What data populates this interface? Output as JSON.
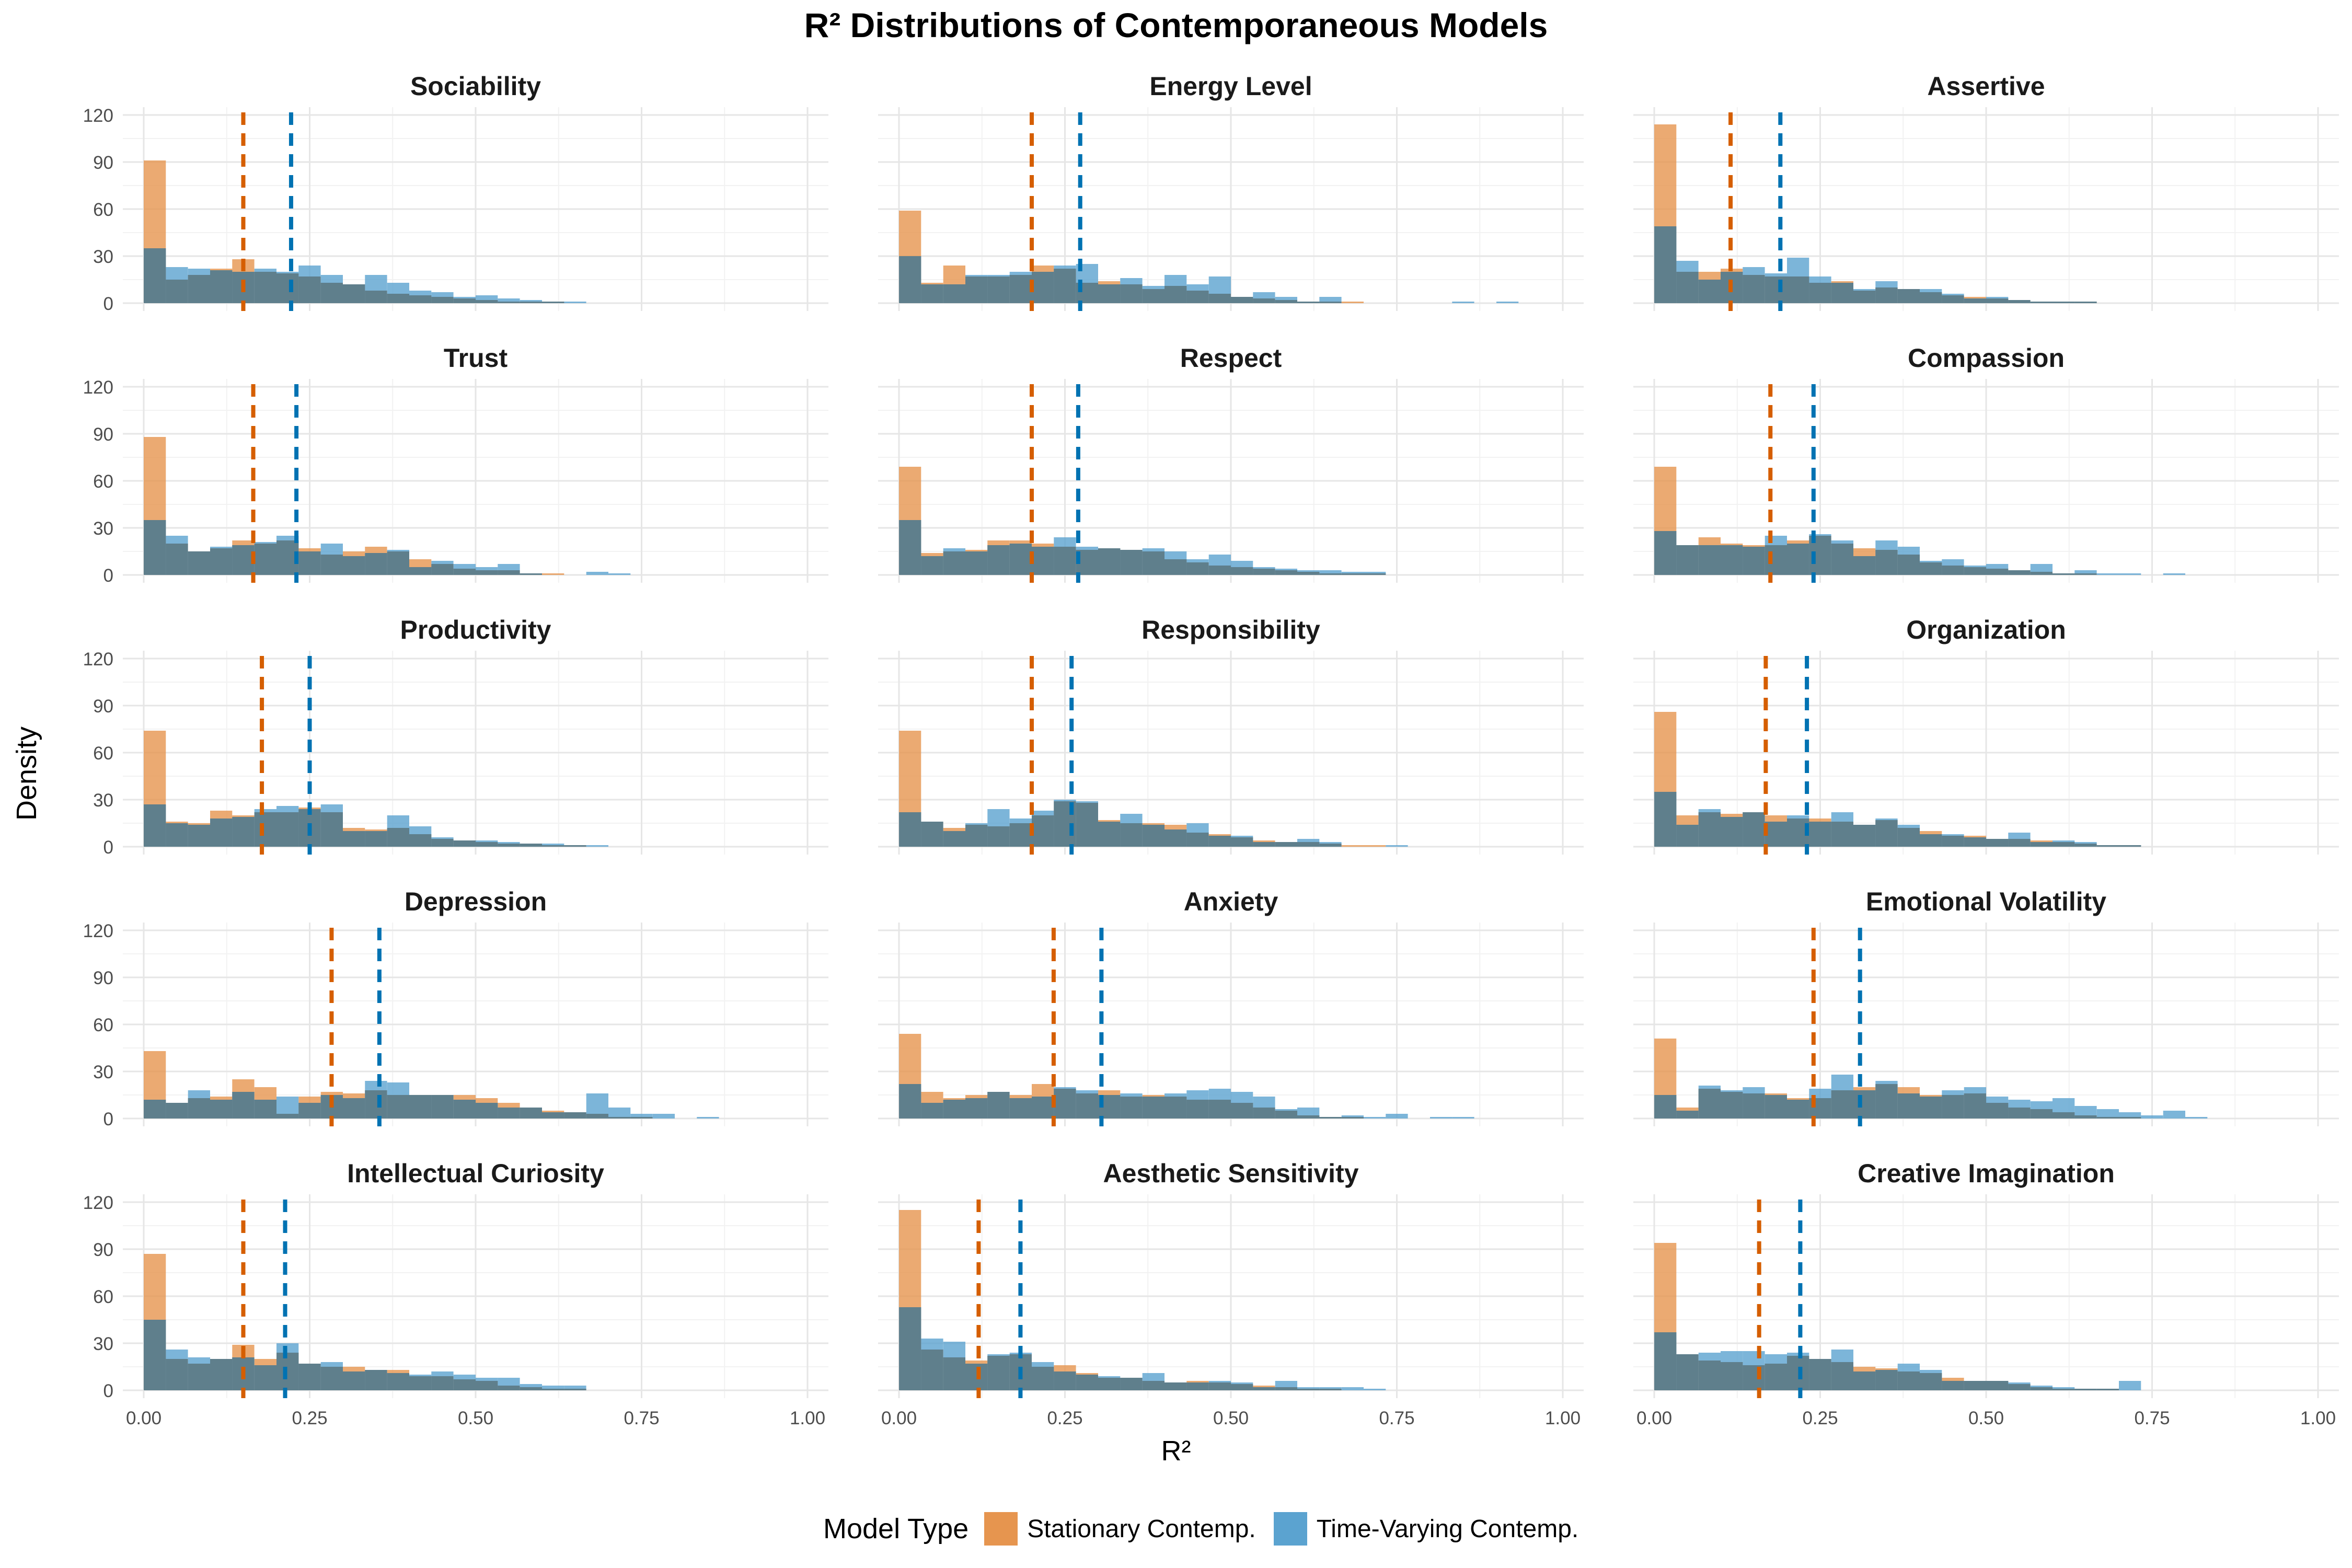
{
  "title": "R² Distributions of Contemporaneous Models",
  "xlabel": "R²",
  "ylabel": "Density",
  "legend": {
    "title": "Model Type",
    "items": [
      {
        "label": "Stationary Contemp.",
        "color": "#E6954F"
      },
      {
        "label": "Time-Varying Contemp.",
        "color": "#5BA3D0"
      }
    ]
  },
  "colors": {
    "stationary_mean": "#D55E00",
    "timevarying_mean": "#0072B2",
    "overlap": "#5F7F8C"
  },
  "chart_data": {
    "type": "histogram",
    "layout": "facet-grid 5 rows x 3 columns",
    "xlim": [
      0,
      1
    ],
    "ylim": [
      0,
      120
    ],
    "x_ticks": [
      "0.00",
      "0.25",
      "0.50",
      "0.75",
      "1.00"
    ],
    "y_ticks": [
      "0",
      "30",
      "60",
      "90",
      "120"
    ],
    "bin_width": 0.0333,
    "bin_starts": [
      0.0,
      0.0333,
      0.0667,
      0.1,
      0.1333,
      0.1667,
      0.2,
      0.2333,
      0.2667,
      0.3,
      0.3333,
      0.3667,
      0.4,
      0.4333,
      0.4667,
      0.5,
      0.5333,
      0.5667,
      0.6,
      0.6333,
      0.6667,
      0.7,
      0.7333,
      0.7667,
      0.8,
      0.8333,
      0.8667,
      0.9,
      0.9333,
      0.9667
    ],
    "series_names": [
      "Stationary Contemp.",
      "Time-Varying Contemp."
    ],
    "panels": [
      {
        "name": "Sociability",
        "mean_stationary": 0.15,
        "mean_timevarying": 0.222,
        "stationary": [
          91,
          15,
          18,
          22,
          28,
          20,
          19,
          17,
          13,
          12,
          8,
          6,
          5,
          4,
          3,
          2,
          1,
          1,
          1,
          0,
          0,
          0,
          0,
          0,
          0,
          0,
          0,
          0,
          0,
          0
        ],
        "timevarying": [
          35,
          23,
          22,
          21,
          20,
          22,
          20,
          24,
          18,
          12,
          18,
          13,
          8,
          7,
          4,
          5,
          3,
          2,
          1,
          1,
          0,
          0,
          0,
          0,
          0,
          0,
          0,
          0,
          0,
          0
        ]
      },
      {
        "name": "Energy Level",
        "mean_stationary": 0.2,
        "mean_timevarying": 0.273,
        "stationary": [
          59,
          13,
          24,
          17,
          17,
          18,
          24,
          22,
          13,
          14,
          12,
          9,
          11,
          8,
          6,
          4,
          3,
          2,
          1,
          1,
          1,
          0,
          0,
          0,
          0,
          0,
          0,
          0,
          0,
          0
        ],
        "timevarying": [
          30,
          12,
          12,
          18,
          18,
          20,
          20,
          24,
          25,
          12,
          16,
          11,
          18,
          12,
          17,
          4,
          7,
          4,
          1,
          4,
          0,
          0,
          0,
          0,
          0,
          1,
          0,
          1,
          0,
          0
        ]
      },
      {
        "name": "Assertive",
        "mean_stationary": 0.115,
        "mean_timevarying": 0.19,
        "stationary": [
          114,
          20,
          20,
          22,
          18,
          17,
          17,
          13,
          14,
          8,
          10,
          9,
          7,
          5,
          4,
          3,
          2,
          1,
          1,
          1,
          0,
          0,
          0,
          0,
          0,
          0,
          0,
          0,
          0,
          0
        ],
        "timevarying": [
          49,
          27,
          15,
          20,
          23,
          19,
          29,
          17,
          13,
          9,
          14,
          9,
          9,
          6,
          3,
          4,
          2,
          1,
          1,
          1,
          0,
          0,
          0,
          0,
          0,
          0,
          0,
          0,
          0,
          0
        ]
      },
      {
        "name": "Trust",
        "mean_stationary": 0.165,
        "mean_timevarying": 0.23,
        "stationary": [
          88,
          20,
          15,
          17,
          22,
          20,
          22,
          17,
          13,
          15,
          18,
          15,
          10,
          7,
          4,
          3,
          3,
          1,
          1,
          0,
          0,
          0,
          0,
          0,
          0,
          0,
          0,
          0,
          0,
          0
        ],
        "timevarying": [
          35,
          25,
          15,
          18,
          19,
          21,
          25,
          15,
          20,
          12,
          14,
          16,
          5,
          9,
          7,
          5,
          7,
          1,
          0,
          0,
          2,
          1,
          0,
          0,
          0,
          0,
          0,
          0,
          0,
          0
        ]
      },
      {
        "name": "Respect",
        "mean_stationary": 0.2,
        "mean_timevarying": 0.27,
        "stationary": [
          69,
          14,
          15,
          16,
          22,
          22,
          20,
          18,
          16,
          17,
          16,
          15,
          10,
          8,
          6,
          5,
          4,
          3,
          2,
          1,
          1,
          1,
          0,
          0,
          0,
          0,
          0,
          0,
          0,
          0
        ],
        "timevarying": [
          35,
          12,
          17,
          15,
          19,
          20,
          18,
          24,
          18,
          17,
          16,
          17,
          15,
          10,
          13,
          9,
          5,
          4,
          3,
          3,
          2,
          2,
          0,
          0,
          0,
          0,
          0,
          0,
          0,
          0
        ]
      },
      {
        "name": "Compassion",
        "mean_stationary": 0.175,
        "mean_timevarying": 0.24,
        "stationary": [
          69,
          19,
          24,
          20,
          19,
          19,
          22,
          25,
          20,
          17,
          16,
          13,
          8,
          6,
          5,
          4,
          3,
          2,
          1,
          1,
          0,
          0,
          0,
          0,
          0,
          0,
          0,
          0,
          0,
          0
        ],
        "timevarying": [
          28,
          19,
          19,
          19,
          18,
          25,
          20,
          26,
          22,
          12,
          22,
          18,
          9,
          10,
          6,
          7,
          3,
          7,
          1,
          3,
          1,
          1,
          0,
          1,
          0,
          0,
          0,
          0,
          0,
          0
        ]
      },
      {
        "name": "Productivity",
        "mean_stationary": 0.178,
        "mean_timevarying": 0.25,
        "stationary": [
          74,
          16,
          15,
          23,
          20,
          22,
          22,
          25,
          22,
          12,
          11,
          12,
          8,
          5,
          4,
          3,
          2,
          2,
          1,
          1,
          0,
          0,
          0,
          0,
          0,
          0,
          0,
          0,
          0,
          0
        ],
        "timevarying": [
          27,
          15,
          14,
          18,
          19,
          24,
          26,
          24,
          27,
          10,
          10,
          20,
          13,
          6,
          4,
          4,
          3,
          2,
          2,
          1,
          1,
          0,
          0,
          0,
          0,
          0,
          0,
          0,
          0,
          0
        ]
      },
      {
        "name": "Responsibility",
        "mean_stationary": 0.2,
        "mean_timevarying": 0.26,
        "stationary": [
          74,
          16,
          12,
          14,
          13,
          15,
          20,
          29,
          28,
          17,
          15,
          15,
          14,
          9,
          8,
          6,
          4,
          3,
          3,
          2,
          1,
          1,
          0,
          0,
          0,
          0,
          0,
          0,
          0,
          0
        ],
        "timevarying": [
          22,
          16,
          10,
          15,
          24,
          18,
          23,
          30,
          29,
          16,
          21,
          14,
          11,
          15,
          7,
          7,
          3,
          3,
          5,
          3,
          0,
          0,
          1,
          0,
          0,
          0,
          0,
          0,
          0,
          0
        ]
      },
      {
        "name": "Organization",
        "mean_stationary": 0.168,
        "mean_timevarying": 0.23,
        "stationary": [
          86,
          20,
          22,
          21,
          22,
          20,
          18,
          18,
          16,
          14,
          17,
          12,
          10,
          7,
          7,
          5,
          5,
          4,
          3,
          2,
          1,
          1,
          0,
          0,
          0,
          0,
          0,
          0,
          0,
          0
        ],
        "timevarying": [
          35,
          14,
          24,
          19,
          22,
          16,
          20,
          16,
          22,
          14,
          18,
          14,
          8,
          8,
          6,
          5,
          9,
          3,
          4,
          3,
          1,
          1,
          0,
          0,
          0,
          0,
          0,
          0,
          0,
          0
        ]
      },
      {
        "name": "Depression",
        "mean_stationary": 0.283,
        "mean_timevarying": 0.355,
        "stationary": [
          43,
          10,
          13,
          14,
          25,
          20,
          3,
          14,
          17,
          16,
          18,
          15,
          15,
          15,
          15,
          13,
          10,
          7,
          5,
          4,
          3,
          1,
          1,
          0,
          0,
          0,
          0,
          0,
          0,
          0
        ],
        "timevarying": [
          12,
          10,
          18,
          12,
          17,
          12,
          14,
          10,
          15,
          13,
          24,
          23,
          15,
          15,
          12,
          10,
          7,
          7,
          4,
          4,
          16,
          7,
          3,
          3,
          0,
          1,
          0,
          0,
          0,
          0
        ]
      },
      {
        "name": "Anxiety",
        "mean_stationary": 0.233,
        "mean_timevarying": 0.305,
        "stationary": [
          54,
          17,
          13,
          15,
          17,
          15,
          22,
          19,
          16,
          18,
          14,
          15,
          14,
          12,
          12,
          10,
          7,
          5,
          2,
          1,
          1,
          0,
          0,
          0,
          0,
          0,
          0,
          0,
          0,
          0
        ],
        "timevarying": [
          22,
          10,
          12,
          13,
          17,
          13,
          14,
          20,
          18,
          15,
          16,
          14,
          16,
          18,
          19,
          17,
          14,
          6,
          7,
          1,
          2,
          1,
          3,
          0,
          1,
          1,
          0,
          0,
          0,
          0
        ]
      },
      {
        "name": "Emotional Volatility",
        "mean_stationary": 0.24,
        "mean_timevarying": 0.31,
        "stationary": [
          51,
          7,
          19,
          17,
          16,
          16,
          13,
          13,
          18,
          20,
          22,
          20,
          15,
          15,
          16,
          10,
          7,
          6,
          4,
          2,
          1,
          1,
          0,
          0,
          0,
          0,
          0,
          0,
          0,
          0
        ],
        "timevarying": [
          15,
          5,
          21,
          18,
          20,
          15,
          12,
          19,
          28,
          18,
          24,
          16,
          14,
          18,
          20,
          14,
          12,
          11,
          13,
          8,
          6,
          4,
          2,
          5,
          1,
          0,
          0,
          0,
          0,
          0
        ]
      },
      {
        "name": "Intellectual Curiosity",
        "mean_stationary": 0.15,
        "mean_timevarying": 0.213,
        "stationary": [
          87,
          20,
          17,
          20,
          29,
          20,
          24,
          17,
          15,
          15,
          13,
          13,
          9,
          9,
          7,
          6,
          3,
          2,
          1,
          1,
          0,
          0,
          0,
          0,
          0,
          0,
          0,
          0,
          0,
          0
        ],
        "timevarying": [
          45,
          26,
          21,
          20,
          21,
          16,
          30,
          17,
          18,
          12,
          13,
          11,
          10,
          12,
          10,
          8,
          8,
          4,
          3,
          3,
          0,
          0,
          0,
          0,
          0,
          0,
          0,
          0,
          0,
          0
        ]
      },
      {
        "name": "Aesthetic Sensitivity",
        "mean_stationary": 0.12,
        "mean_timevarying": 0.183,
        "stationary": [
          115,
          26,
          21,
          19,
          22,
          23,
          15,
          16,
          11,
          8,
          8,
          6,
          5,
          6,
          5,
          4,
          3,
          2,
          1,
          1,
          0,
          0,
          0,
          0,
          0,
          0,
          0,
          0,
          0,
          0
        ],
        "timevarying": [
          53,
          33,
          31,
          17,
          23,
          24,
          18,
          12,
          10,
          9,
          8,
          11,
          5,
          5,
          6,
          5,
          2,
          6,
          2,
          2,
          2,
          1,
          0,
          0,
          0,
          0,
          0,
          0,
          0,
          0
        ]
      },
      {
        "name": "Creative Imagination",
        "mean_stationary": 0.158,
        "mean_timevarying": 0.22,
        "stationary": [
          94,
          23,
          19,
          18,
          16,
          17,
          22,
          20,
          18,
          15,
          14,
          12,
          11,
          8,
          6,
          6,
          4,
          2,
          1,
          1,
          1,
          0,
          0,
          0,
          0,
          0,
          0,
          0,
          0,
          0
        ],
        "timevarying": [
          37,
          23,
          24,
          25,
          25,
          23,
          24,
          20,
          26,
          12,
          13,
          17,
          13,
          6,
          6,
          6,
          5,
          3,
          2,
          1,
          1,
          6,
          0,
          0,
          0,
          0,
          0,
          0,
          0,
          0
        ]
      }
    ]
  }
}
